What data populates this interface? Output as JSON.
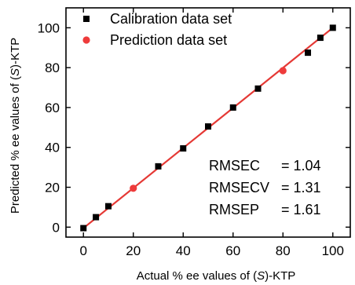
{
  "chart_data": {
    "type": "scatter",
    "xlabel": {
      "prefix": "Actual % ee values of (",
      "italic": "S",
      "suffix": ")-KTP"
    },
    "ylabel": {
      "prefix": "Predicted % ee values of (",
      "italic": "S",
      "suffix": ")-KTP"
    },
    "xlim": [
      -7,
      107
    ],
    "ylim": [
      -5,
      110
    ],
    "xticks": [
      0,
      20,
      40,
      60,
      80,
      100
    ],
    "yticks": [
      0,
      20,
      40,
      60,
      80,
      100
    ],
    "legend_position": "top-left",
    "series": [
      {
        "name": "Calibration data set",
        "marker": "square",
        "color": "#000000",
        "points": [
          [
            0,
            -0.5
          ],
          [
            5,
            5
          ],
          [
            10,
            10.5
          ],
          [
            30,
            30.5
          ],
          [
            40,
            39.5
          ],
          [
            50,
            50.5
          ],
          [
            60,
            60
          ],
          [
            70,
            69.5
          ],
          [
            90,
            87.5
          ],
          [
            95,
            95
          ],
          [
            100,
            100
          ]
        ]
      },
      {
        "name": "Prediction data set",
        "marker": "circle",
        "color": "#ee3b3b",
        "points": [
          [
            20,
            19.5
          ],
          [
            80,
            78.5
          ]
        ]
      }
    ],
    "fit_line": {
      "x": [
        0,
        100
      ],
      "y": [
        -0.5,
        100
      ],
      "color": "#e53935"
    },
    "annotations": [
      {
        "label": "RMSEC",
        "value": "= 1.04"
      },
      {
        "label": "RMSECV",
        "value": "= 1.31"
      },
      {
        "label": "RMSEP",
        "value": "= 1.61"
      }
    ]
  }
}
